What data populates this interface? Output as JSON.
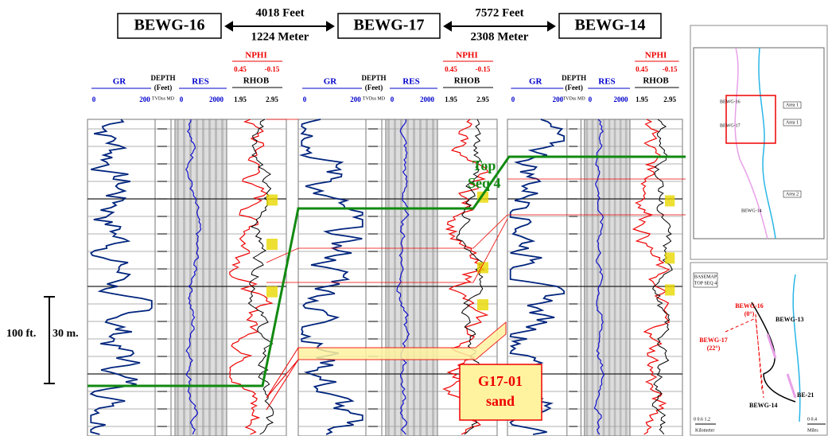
{
  "wells": [
    "BEWG-16",
    "BEWG-17",
    "BEWG-14"
  ],
  "distances": [
    {
      "feet": "4018 Feet",
      "meter": "1224 Meter"
    },
    {
      "feet": "7572 Feet",
      "meter": "2308 Meter"
    }
  ],
  "track_header": {
    "gr": "GR",
    "gr_min": "0",
    "gr_max": "200",
    "depth": "DEPTH",
    "depth_unit": "(Feet)",
    "depth_ref": "TVDss MD",
    "res": "RES",
    "res_min": "0",
    "res_max": "2000",
    "nphi": "NPHI",
    "nphi_min": "0.45",
    "nphi_max": "-0.15",
    "rhob": "RHOB",
    "rhob_min": "1.95",
    "rhob_max": "2.95"
  },
  "annotations": {
    "top_seq": [
      "Top",
      "Seq 4"
    ],
    "sand": [
      "G17-01",
      "sand"
    ],
    "scale_ft": "100 ft.",
    "scale_m": "30 m."
  },
  "map_top": {
    "areas": [
      "Area 1",
      "Area 1",
      "Area 2"
    ],
    "wells": [
      "BEWG-16",
      "BEWG-17",
      "BEWG-14"
    ]
  },
  "map_bottom": {
    "title": [
      "BASEMAP",
      "TOP SEQ 4"
    ],
    "labels": [
      "BEWG-16",
      "(0°)",
      "BEWG-17",
      "(22°)",
      "BEWG-13",
      "BE-21",
      "BEWG-14"
    ],
    "scale_km": "Kilometer",
    "scale_mi": "Miles",
    "km_ticks": "0   0.6  1.2",
    "mi_ticks": "0   0.4"
  }
}
